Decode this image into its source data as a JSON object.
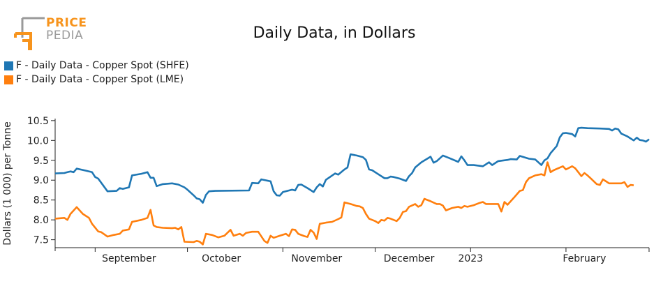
{
  "logo": {
    "line1": "PRICE",
    "line2": "PEDIA"
  },
  "colors": {
    "shfe": "#1f77b4",
    "lme": "#ff7f0e",
    "brand_orange": "#f7941d",
    "brand_gray": "#9a9a9a"
  },
  "chart_data": {
    "type": "line",
    "title": "Daily Data, in Dollars",
    "xlabel": "",
    "ylabel": "Dollars (1 000) per Tonne",
    "ylim": [
      7.3,
      10.55
    ],
    "xlim": [
      "2022-08-19",
      "2023-02-28"
    ],
    "yticks": [
      7.5,
      8.0,
      8.5,
      9.0,
      9.5,
      10.0,
      10.5
    ],
    "ytick_labels": [
      "7.5",
      "8.0",
      "8.5",
      "9.0",
      "9.5",
      "10.0",
      "10.5"
    ],
    "xticks": [
      {
        "date": "2022-09-01",
        "label": ""
      },
      {
        "date": "2022-10-01",
        "label": ""
      },
      {
        "date": "2022-11-01",
        "label": ""
      },
      {
        "date": "2022-12-01",
        "label": ""
      },
      {
        "date": "2023-01-01",
        "label": ""
      },
      {
        "date": "2023-02-01",
        "label": ""
      }
    ],
    "xtick_labels": [
      {
        "date": "2022-09-12",
        "label": "September"
      },
      {
        "date": "2022-10-12",
        "label": "October"
      },
      {
        "date": "2022-11-12",
        "label": "November"
      },
      {
        "date": "2022-12-12",
        "label": "December"
      },
      {
        "date": "2023-01-01",
        "label": "2023"
      },
      {
        "date": "2023-02-07",
        "label": "February"
      }
    ],
    "legend": "top-left",
    "grid": false,
    "series": [
      {
        "name": "F - Daily Data - Copper Spot (SHFE)",
        "color": "#1f77b4",
        "points": [
          [
            "2022-08-19",
            9.17
          ],
          [
            "2022-08-22",
            9.18
          ],
          [
            "2022-08-23",
            9.2
          ],
          [
            "2022-08-24",
            9.22
          ],
          [
            "2022-08-25",
            9.2
          ],
          [
            "2022-08-26",
            9.29
          ],
          [
            "2022-08-29",
            9.24
          ],
          [
            "2022-08-31",
            9.2
          ],
          [
            "2022-09-01",
            9.08
          ],
          [
            "2022-09-02",
            9.04
          ],
          [
            "2022-09-05",
            8.72
          ],
          [
            "2022-09-08",
            8.73
          ],
          [
            "2022-09-09",
            8.8
          ],
          [
            "2022-09-10",
            8.78
          ],
          [
            "2022-09-12",
            8.82
          ],
          [
            "2022-09-13",
            9.12
          ],
          [
            "2022-09-16",
            9.16
          ],
          [
            "2022-09-18",
            9.2
          ],
          [
            "2022-09-19",
            9.06
          ],
          [
            "2022-09-20",
            9.06
          ],
          [
            "2022-09-21",
            8.85
          ],
          [
            "2022-09-23",
            8.9
          ],
          [
            "2022-09-26",
            8.92
          ],
          [
            "2022-09-28",
            8.89
          ],
          [
            "2022-09-30",
            8.82
          ],
          [
            "2022-10-01",
            8.76
          ],
          [
            "2022-10-03",
            8.62
          ],
          [
            "2022-10-04",
            8.54
          ],
          [
            "2022-10-05",
            8.52
          ],
          [
            "2022-10-06",
            8.43
          ],
          [
            "2022-10-07",
            8.63
          ],
          [
            "2022-10-08",
            8.72
          ],
          [
            "2022-10-10",
            8.73
          ],
          [
            "2022-10-21",
            8.74
          ],
          [
            "2022-10-22",
            8.93
          ],
          [
            "2022-10-24",
            8.92
          ],
          [
            "2022-10-25",
            9.02
          ],
          [
            "2022-10-28",
            8.97
          ],
          [
            "2022-10-29",
            8.72
          ],
          [
            "2022-10-30",
            8.62
          ],
          [
            "2022-10-31",
            8.61
          ],
          [
            "2022-11-01",
            8.7
          ],
          [
            "2022-11-04",
            8.76
          ],
          [
            "2022-11-05",
            8.74
          ],
          [
            "2022-11-06",
            8.88
          ],
          [
            "2022-11-07",
            8.89
          ],
          [
            "2022-11-09",
            8.8
          ],
          [
            "2022-11-11",
            8.7
          ],
          [
            "2022-11-12",
            8.82
          ],
          [
            "2022-11-13",
            8.9
          ],
          [
            "2022-11-14",
            8.84
          ],
          [
            "2022-11-15",
            9.01
          ],
          [
            "2022-11-18",
            9.17
          ],
          [
            "2022-11-19",
            9.14
          ],
          [
            "2022-11-21",
            9.27
          ],
          [
            "2022-11-22",
            9.32
          ],
          [
            "2022-11-23",
            9.65
          ],
          [
            "2022-11-25",
            9.62
          ],
          [
            "2022-11-27",
            9.58
          ],
          [
            "2022-11-28",
            9.51
          ],
          [
            "2022-11-29",
            9.27
          ],
          [
            "2022-11-30",
            9.25
          ],
          [
            "2022-12-02",
            9.15
          ],
          [
            "2022-12-04",
            9.05
          ],
          [
            "2022-12-05",
            9.05
          ],
          [
            "2022-12-06",
            9.09
          ],
          [
            "2022-12-07",
            9.08
          ],
          [
            "2022-12-09",
            9.04
          ],
          [
            "2022-12-11",
            8.98
          ],
          [
            "2022-12-12",
            9.1
          ],
          [
            "2022-12-13",
            9.18
          ],
          [
            "2022-12-14",
            9.32
          ],
          [
            "2022-12-16",
            9.45
          ],
          [
            "2022-12-19",
            9.59
          ],
          [
            "2022-12-20",
            9.44
          ],
          [
            "2022-12-21",
            9.48
          ],
          [
            "2022-12-23",
            9.62
          ],
          [
            "2022-12-25",
            9.56
          ],
          [
            "2022-12-28",
            9.46
          ],
          [
            "2022-12-29",
            9.6
          ],
          [
            "2022-12-30",
            9.5
          ],
          [
            "2022-12-31",
            9.38
          ],
          [
            "2023-01-02",
            9.38
          ],
          [
            "2023-01-05",
            9.35
          ],
          [
            "2023-01-06",
            9.4
          ],
          [
            "2023-01-07",
            9.45
          ],
          [
            "2023-01-08",
            9.38
          ],
          [
            "2023-01-10",
            9.48
          ],
          [
            "2023-01-13",
            9.51
          ],
          [
            "2023-01-14",
            9.53
          ],
          [
            "2023-01-16",
            9.52
          ],
          [
            "2023-01-17",
            9.61
          ],
          [
            "2023-01-20",
            9.54
          ],
          [
            "2023-01-22",
            9.52
          ],
          [
            "2023-01-24",
            9.38
          ],
          [
            "2023-01-25",
            9.5
          ],
          [
            "2023-01-26",
            9.55
          ],
          [
            "2023-01-27",
            9.68
          ],
          [
            "2023-01-29",
            9.86
          ],
          [
            "2023-01-30",
            10.08
          ],
          [
            "2023-01-31",
            10.18
          ],
          [
            "2023-02-01",
            10.19
          ],
          [
            "2023-02-03",
            10.16
          ],
          [
            "2023-02-04",
            10.1
          ],
          [
            "2023-02-05",
            10.31
          ],
          [
            "2023-02-06",
            10.32
          ],
          [
            "2023-02-08",
            10.31
          ],
          [
            "2023-02-12",
            10.3
          ],
          [
            "2023-02-15",
            10.29
          ],
          [
            "2023-02-16",
            10.25
          ],
          [
            "2023-02-17",
            10.3
          ],
          [
            "2023-02-18",
            10.28
          ],
          [
            "2023-02-19",
            10.17
          ],
          [
            "2023-02-21",
            10.1
          ],
          [
            "2023-02-23",
            10.0
          ],
          [
            "2023-02-24",
            10.07
          ],
          [
            "2023-02-25",
            10.01
          ],
          [
            "2023-02-26",
            10.0
          ],
          [
            "2023-02-27",
            9.97
          ],
          [
            "2023-02-28",
            10.03
          ]
        ]
      },
      {
        "name": "F - Daily Data - Copper Spot (LME)",
        "color": "#ff7f0e",
        "points": [
          [
            "2022-08-19",
            8.03
          ],
          [
            "2022-08-22",
            8.05
          ],
          [
            "2022-08-23",
            8.0
          ],
          [
            "2022-08-24",
            8.15
          ],
          [
            "2022-08-26",
            8.32
          ],
          [
            "2022-08-28",
            8.15
          ],
          [
            "2022-08-30",
            8.05
          ],
          [
            "2022-08-31",
            7.9
          ],
          [
            "2022-09-02",
            7.71
          ],
          [
            "2022-09-03",
            7.69
          ],
          [
            "2022-09-05",
            7.58
          ],
          [
            "2022-09-07",
            7.62
          ],
          [
            "2022-09-09",
            7.65
          ],
          [
            "2022-09-10",
            7.73
          ],
          [
            "2022-09-12",
            7.76
          ],
          [
            "2022-09-13",
            7.95
          ],
          [
            "2022-09-16",
            8.0
          ],
          [
            "2022-09-18",
            8.05
          ],
          [
            "2022-09-19",
            8.25
          ],
          [
            "2022-09-20",
            7.86
          ],
          [
            "2022-09-21",
            7.82
          ],
          [
            "2022-09-23",
            7.8
          ],
          [
            "2022-09-26",
            7.79
          ],
          [
            "2022-09-27",
            7.8
          ],
          [
            "2022-09-28",
            7.76
          ],
          [
            "2022-09-29",
            7.82
          ],
          [
            "2022-09-30",
            7.45
          ],
          [
            "2022-10-03",
            7.44
          ],
          [
            "2022-10-04",
            7.47
          ],
          [
            "2022-10-05",
            7.45
          ],
          [
            "2022-10-06",
            7.38
          ],
          [
            "2022-10-07",
            7.65
          ],
          [
            "2022-10-09",
            7.62
          ],
          [
            "2022-10-11",
            7.56
          ],
          [
            "2022-10-13",
            7.6
          ],
          [
            "2022-10-15",
            7.75
          ],
          [
            "2022-10-16",
            7.6
          ],
          [
            "2022-10-18",
            7.65
          ],
          [
            "2022-10-19",
            7.6
          ],
          [
            "2022-10-20",
            7.67
          ],
          [
            "2022-10-22",
            7.7
          ],
          [
            "2022-10-24",
            7.7
          ],
          [
            "2022-10-26",
            7.47
          ],
          [
            "2022-10-27",
            7.42
          ],
          [
            "2022-10-28",
            7.6
          ],
          [
            "2022-10-29",
            7.55
          ],
          [
            "2022-10-31",
            7.6
          ],
          [
            "2022-11-02",
            7.65
          ],
          [
            "2022-11-03",
            7.59
          ],
          [
            "2022-11-04",
            7.76
          ],
          [
            "2022-11-05",
            7.75
          ],
          [
            "2022-11-06",
            7.65
          ],
          [
            "2022-11-08",
            7.59
          ],
          [
            "2022-11-09",
            7.57
          ],
          [
            "2022-11-10",
            7.75
          ],
          [
            "2022-11-11",
            7.68
          ],
          [
            "2022-11-12",
            7.52
          ],
          [
            "2022-11-13",
            7.9
          ],
          [
            "2022-11-15",
            7.93
          ],
          [
            "2022-11-17",
            7.95
          ],
          [
            "2022-11-19",
            8.02
          ],
          [
            "2022-11-20",
            8.06
          ],
          [
            "2022-11-21",
            8.44
          ],
          [
            "2022-11-23",
            8.4
          ],
          [
            "2022-11-25",
            8.35
          ],
          [
            "2022-11-26",
            8.34
          ],
          [
            "2022-11-27",
            8.3
          ],
          [
            "2022-11-28",
            8.15
          ],
          [
            "2022-11-29",
            8.03
          ],
          [
            "2022-12-01",
            7.97
          ],
          [
            "2022-12-02",
            7.92
          ],
          [
            "2022-12-03",
            8.0
          ],
          [
            "2022-12-04",
            7.98
          ],
          [
            "2022-12-05",
            8.05
          ],
          [
            "2022-12-06",
            8.03
          ],
          [
            "2022-12-08",
            7.97
          ],
          [
            "2022-12-09",
            8.05
          ],
          [
            "2022-12-10",
            8.2
          ],
          [
            "2022-12-11",
            8.22
          ],
          [
            "2022-12-12",
            8.33
          ],
          [
            "2022-12-14",
            8.4
          ],
          [
            "2022-12-15",
            8.33
          ],
          [
            "2022-12-16",
            8.37
          ],
          [
            "2022-12-17",
            8.53
          ],
          [
            "2022-12-19",
            8.47
          ],
          [
            "2022-12-21",
            8.4
          ],
          [
            "2022-12-22",
            8.4
          ],
          [
            "2022-12-23",
            8.36
          ],
          [
            "2022-12-24",
            8.24
          ],
          [
            "2022-12-26",
            8.3
          ],
          [
            "2022-12-28",
            8.33
          ],
          [
            "2022-12-29",
            8.3
          ],
          [
            "2022-12-30",
            8.35
          ],
          [
            "2022-12-31",
            8.33
          ],
          [
            "2023-01-02",
            8.37
          ],
          [
            "2023-01-04",
            8.43
          ],
          [
            "2023-01-05",
            8.45
          ],
          [
            "2023-01-06",
            8.4
          ],
          [
            "2023-01-10",
            8.4
          ],
          [
            "2023-01-11",
            8.21
          ],
          [
            "2023-01-12",
            8.45
          ],
          [
            "2023-01-13",
            8.38
          ],
          [
            "2023-01-15",
            8.55
          ],
          [
            "2023-01-17",
            8.73
          ],
          [
            "2023-01-18",
            8.75
          ],
          [
            "2023-01-19",
            8.95
          ],
          [
            "2023-01-20",
            9.05
          ],
          [
            "2023-01-22",
            9.12
          ],
          [
            "2023-01-24",
            9.15
          ],
          [
            "2023-01-25",
            9.12
          ],
          [
            "2023-01-26",
            9.45
          ],
          [
            "2023-01-27",
            9.2
          ],
          [
            "2023-01-28",
            9.25
          ],
          [
            "2023-01-31",
            9.35
          ],
          [
            "2023-02-01",
            9.27
          ],
          [
            "2023-02-03",
            9.35
          ],
          [
            "2023-02-04",
            9.3
          ],
          [
            "2023-02-05",
            9.2
          ],
          [
            "2023-02-06",
            9.1
          ],
          [
            "2023-02-07",
            9.18
          ],
          [
            "2023-02-08",
            9.12
          ],
          [
            "2023-02-09",
            9.05
          ],
          [
            "2023-02-11",
            8.9
          ],
          [
            "2023-02-12",
            8.88
          ],
          [
            "2023-02-13",
            9.02
          ],
          [
            "2023-02-14",
            8.97
          ],
          [
            "2023-02-15",
            8.92
          ],
          [
            "2023-02-19",
            8.92
          ],
          [
            "2023-02-20",
            8.95
          ],
          [
            "2023-02-21",
            8.83
          ],
          [
            "2023-02-22",
            8.88
          ],
          [
            "2023-02-23",
            8.87
          ]
        ]
      }
    ]
  }
}
